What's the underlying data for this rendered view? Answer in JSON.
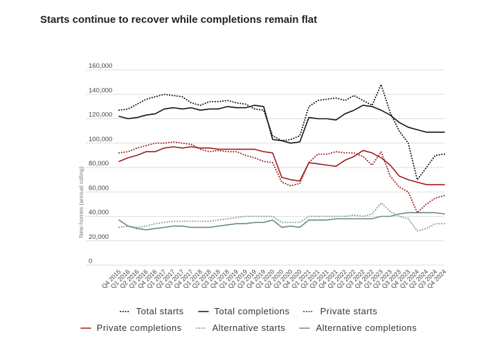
{
  "chart_data": {
    "type": "line",
    "title": "Starts continue to recover while completions remain flat",
    "ylabel": "New homes (annual rolling)",
    "xlabel": "",
    "ylim": [
      0,
      160000
    ],
    "yticks": [
      "0",
      "20,000",
      "40,000",
      "60,000",
      "80,000",
      "100,000",
      "120,000",
      "140,000",
      "160,000"
    ],
    "yticks_values": [
      0,
      20000,
      40000,
      60000,
      80000,
      100000,
      120000,
      140000,
      160000
    ],
    "x": [
      "Q4 2015",
      "Q1 2016",
      "Q2 2016",
      "Q3 2016",
      "Q4 2016",
      "Q1 2017",
      "Q2 2017",
      "Q3 2017",
      "Q4 2017",
      "Q1 2018",
      "Q2 2018",
      "Q3 2018",
      "Q4 2018",
      "Q1 2019",
      "Q2 2019",
      "Q3 2019",
      "Q4 2019",
      "Q1 2020",
      "Q2 2020",
      "Q3 2020",
      "Q4 2020",
      "Q1 2021",
      "Q2 2021",
      "Q3 2021",
      "Q4 2021",
      "Q1 2022",
      "Q2 2022",
      "Q3 2022",
      "Q4 2022",
      "Q1 2023",
      "Q2 2023",
      "Q3 2023",
      "Q4 2023",
      "Q1 2024",
      "Q2 2024",
      "Q3 2024",
      "Q4 2024"
    ],
    "legend_position": "bottom",
    "grid": true,
    "series": [
      {
        "name": "Total starts",
        "color": "#111111",
        "style": "dotted",
        "values": [
          127000,
          128000,
          132000,
          136000,
          138000,
          140000,
          139000,
          138000,
          133000,
          131000,
          134000,
          134000,
          135000,
          133000,
          132000,
          128000,
          127000,
          106000,
          102000,
          103000,
          106000,
          130000,
          135000,
          136000,
          137000,
          135000,
          139000,
          135000,
          131000,
          148000,
          125000,
          110000,
          100000,
          70000,
          80000,
          90000,
          91000
        ]
      },
      {
        "name": "Total completions",
        "color": "#111111",
        "style": "solid",
        "values": [
          122000,
          120000,
          121000,
          123000,
          124000,
          128000,
          129000,
          128000,
          129000,
          127000,
          128000,
          128000,
          130000,
          129000,
          129000,
          131000,
          130000,
          103000,
          102000,
          100000,
          101000,
          121000,
          120000,
          120000,
          119000,
          124000,
          127000,
          131000,
          130000,
          127000,
          123000,
          117000,
          113000,
          111000,
          109000,
          109000,
          109000
        ]
      },
      {
        "name": "Private starts",
        "color": "#9b1b1b",
        "style": "dotted",
        "values": [
          92000,
          93000,
          96000,
          98000,
          100000,
          100000,
          101000,
          100000,
          99000,
          95000,
          93000,
          94000,
          93000,
          93000,
          90000,
          88000,
          85000,
          84000,
          68000,
          65000,
          67000,
          84000,
          91000,
          91000,
          93000,
          92000,
          92000,
          89000,
          82000,
          93000,
          73000,
          64000,
          60000,
          43000,
          50000,
          55000,
          57000
        ]
      },
      {
        "name": "Private completions",
        "color": "#9b1b1b",
        "style": "solid",
        "values": [
          85000,
          88000,
          90000,
          93000,
          93000,
          96000,
          97000,
          96000,
          97000,
          96000,
          96000,
          95000,
          95000,
          95000,
          95000,
          95000,
          93000,
          92000,
          72000,
          70000,
          69000,
          84000,
          83000,
          82000,
          81000,
          86000,
          89000,
          94000,
          92000,
          88000,
          82000,
          73000,
          70000,
          68000,
          66000,
          66000,
          66000
        ]
      },
      {
        "name": "Alternative starts",
        "color": "#7f9a90",
        "style": "dotted",
        "values": [
          31000,
          32000,
          31000,
          32000,
          34000,
          35000,
          36000,
          36000,
          36000,
          36000,
          36000,
          37000,
          38000,
          39000,
          40000,
          40000,
          40000,
          40000,
          35000,
          35000,
          35000,
          40000,
          40000,
          40000,
          40000,
          40000,
          41000,
          40000,
          42000,
          51000,
          44000,
          40000,
          38000,
          28000,
          30000,
          34000,
          34000
        ]
      },
      {
        "name": "Alternative completions",
        "color": "#6b8a80",
        "style": "solid",
        "values": [
          37000,
          32000,
          30000,
          29000,
          30000,
          31000,
          32000,
          32000,
          31000,
          31000,
          31000,
          32000,
          33000,
          34000,
          34000,
          35000,
          35000,
          37000,
          31000,
          32000,
          31000,
          37000,
          37000,
          37000,
          38000,
          38000,
          38000,
          38000,
          38000,
          40000,
          40000,
          42000,
          43000,
          43000,
          43000,
          43000,
          42000
        ]
      }
    ]
  }
}
